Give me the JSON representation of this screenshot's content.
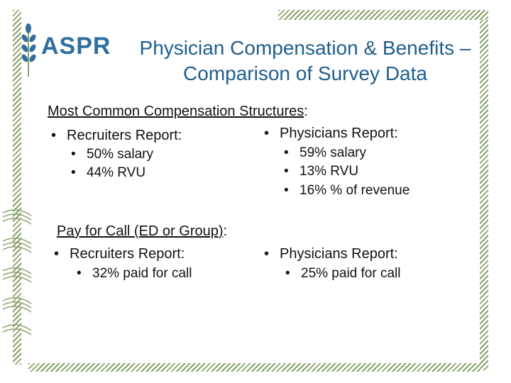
{
  "brand": {
    "logo_text": "ASPR",
    "accent_color": "#2f6fa0",
    "title_color": "#1f5e8e",
    "frame_color": "#8aa26a",
    "logo_icon": "wheat-sprig-icon"
  },
  "title": {
    "line1": "Physician Compensation & Benefits –",
    "line2": "Comparison of Survey Data"
  },
  "section1": {
    "heading": "Most Common Compensation Structures",
    "suffix": ":",
    "recruiters": {
      "label": "Recruiters Report:",
      "items": [
        "50% salary",
        "44% RVU"
      ]
    },
    "physicians": {
      "label": "Physicians Report:",
      "items": [
        "59% salary",
        "13% RVU",
        "16% % of revenue"
      ]
    }
  },
  "section2": {
    "heading": "Pay for Call (ED or Group)",
    "suffix": ":",
    "recruiters": {
      "label": "Recruiters Report:",
      "items": [
        "32% paid for call"
      ]
    },
    "physicians": {
      "label": "Physicians Report:",
      "items": [
        "25% paid for call"
      ]
    }
  }
}
